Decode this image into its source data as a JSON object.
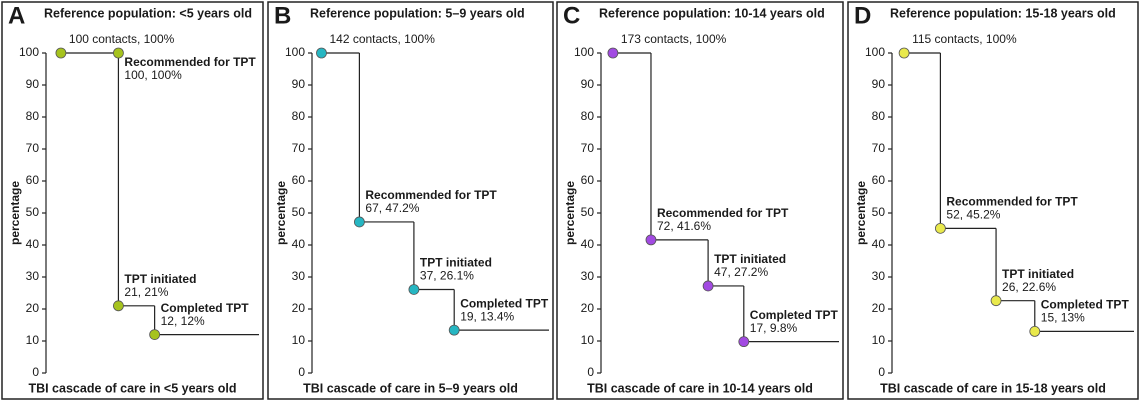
{
  "chart_data": [
    {
      "type": "step",
      "panel_label": "A",
      "title": "Reference population: <5 years old",
      "ylabel": "percentage",
      "xlabel": "TBI cascade of care in  <5 years old",
      "categories": [
        null,
        "Recommended for TPT",
        "TPT initiated",
        "Completed TPT"
      ],
      "values": [
        100,
        100,
        21,
        12
      ],
      "value_labels": [
        "100 contacts, 100%",
        "100, 100%",
        "21, 21%",
        "12, 12%"
      ],
      "color": "#a6c31e",
      "ylim": [
        0,
        100
      ],
      "yticks": [
        0,
        10,
        20,
        30,
        40,
        50,
        60,
        70,
        80,
        90,
        100
      ]
    },
    {
      "type": "step",
      "panel_label": "B",
      "title": "Reference population: 5–9 years old",
      "ylabel": "percentage",
      "xlabel": "TBI cascade of care in 5–9 years old",
      "categories": [
        null,
        "Recommended for TPT",
        "TPT initiated",
        "Completed TPT"
      ],
      "values": [
        100,
        47.2,
        26.1,
        13.4
      ],
      "value_labels": [
        "142 contacts, 100%",
        "67, 47.2%",
        "37, 26.1%",
        "19, 13.4%"
      ],
      "color": "#26b6c2",
      "ylim": [
        0,
        100
      ],
      "yticks": [
        0,
        10,
        20,
        30,
        40,
        50,
        60,
        70,
        80,
        90,
        100
      ]
    },
    {
      "type": "step",
      "panel_label": "C",
      "title": "Reference population: 10-14 years old",
      "ylabel": "percentage",
      "xlabel": "TBI cascade of care in  10-14 years old",
      "categories": [
        null,
        "Recommended for TPT",
        "TPT initiated",
        "Completed TPT"
      ],
      "values": [
        100,
        41.6,
        27.2,
        9.8
      ],
      "value_labels": [
        "173 contacts, 100%",
        "72, 41.6%",
        "47, 27.2%",
        "17, 9.8%"
      ],
      "color": "#a24ae2",
      "ylim": [
        0,
        100
      ],
      "yticks": [
        0,
        10,
        20,
        30,
        40,
        50,
        60,
        70,
        80,
        90,
        100
      ]
    },
    {
      "type": "step",
      "panel_label": "D",
      "title": "Reference population: 15-18 years old",
      "ylabel": "percentage",
      "xlabel": "TBI cascade of care in  15-18 years old",
      "categories": [
        null,
        "Recommended for TPT",
        "TPT initiated",
        "Completed TPT"
      ],
      "values": [
        100,
        45.2,
        22.6,
        13
      ],
      "value_labels": [
        "115 contacts, 100%",
        "52, 45.2%",
        "26, 22.6%",
        "15, 13%"
      ],
      "color": "#e9e94c",
      "ylim": [
        0,
        100
      ],
      "yticks": [
        0,
        10,
        20,
        30,
        40,
        50,
        60,
        70,
        80,
        90,
        100
      ]
    }
  ]
}
